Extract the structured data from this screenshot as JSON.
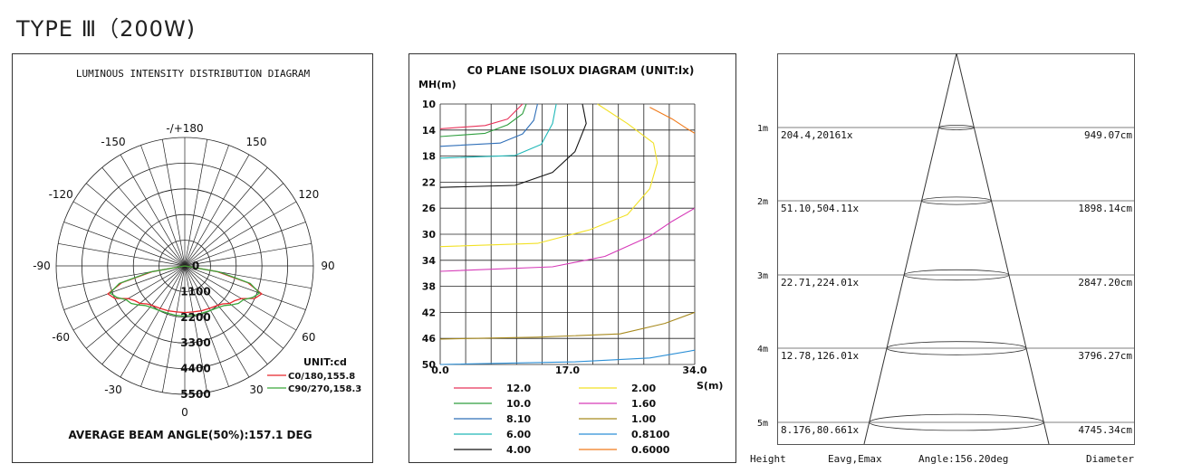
{
  "page": {
    "title": "TYPE Ⅲ（200W)"
  },
  "polar": {
    "title": "LUMINOUS INTENSITY DISTRIBUTION DIAGRAM",
    "angle_labels": [
      "-/+180",
      "150",
      "120",
      "90",
      "60",
      "30",
      "0",
      "-30",
      "-60",
      "-90",
      "-120",
      "-150"
    ],
    "radial_labels": [
      "0",
      "1100",
      "2200",
      "3300",
      "4400",
      "5500"
    ],
    "unit": "UNIT:cd",
    "legend": [
      {
        "label": "C0/180,155.8",
        "color": "#e8262b"
      },
      {
        "label": "C90/270,158.3",
        "color": "#3aa63a"
      }
    ],
    "beam_angle": "AVERAGE BEAM ANGLE(50%):157.1 DEG"
  },
  "isolux": {
    "title": "C0 PLANE ISOLUX DIAGRAM (UNIT:lx)",
    "y_label": "MH(m)",
    "x_label": "S(m)",
    "y_ticks": [
      "10",
      "14",
      "18",
      "22",
      "26",
      "30",
      "34",
      "38",
      "42",
      "46",
      "50"
    ],
    "x_ticks": [
      "0.0",
      "17.0",
      "34.0"
    ],
    "legend": [
      {
        "label": "12.0",
        "color": "#e8335a"
      },
      {
        "label": "10.0",
        "color": "#2e9e3e"
      },
      {
        "label": "8.10",
        "color": "#2f6fb8"
      },
      {
        "label": "6.00",
        "color": "#20b8b8"
      },
      {
        "label": "4.00",
        "color": "#111111"
      },
      {
        "label": "2.00",
        "color": "#f2e125"
      },
      {
        "label": "1.60",
        "color": "#d63ab8"
      },
      {
        "label": "1.00",
        "color": "#a88a1e"
      },
      {
        "label": "0.8100",
        "color": "#2c8fd6"
      },
      {
        "label": "0.6000",
        "color": "#f07a1a"
      }
    ]
  },
  "cone": {
    "rows": [
      {
        "height": "1m",
        "values": "204.4,20161x",
        "diameter": "949.07cm"
      },
      {
        "height": "2m",
        "values": "51.10,504.11x",
        "diameter": "1898.14cm"
      },
      {
        "height": "3m",
        "values": "22.71,224.01x",
        "diameter": "2847.20cm"
      },
      {
        "height": "4m",
        "values": "12.78,126.01x",
        "diameter": "3796.27cm"
      },
      {
        "height": "5m",
        "values": "8.176,80.661x",
        "diameter": "4745.34cm"
      }
    ],
    "footer": {
      "height": "Height",
      "eavg": "Eavg,Emax",
      "angle": "Angle:156.20deg",
      "diameter": "Diameter"
    }
  },
  "chart_data": [
    {
      "type": "polar",
      "title": "LUMINOUS INTENSITY DISTRIBUTION DIAGRAM",
      "unit": "cd",
      "rlim": [
        0,
        5500
      ],
      "series": [
        {
          "name": "C0/180,155.8",
          "color": "#e8262b",
          "angles_deg": [
            -90,
            -80,
            -75,
            -70,
            -65,
            -60,
            -55,
            -50,
            -45,
            -40,
            -30,
            -20,
            -10,
            0,
            10,
            20,
            30,
            40,
            45,
            50,
            55,
            60,
            65,
            70,
            75,
            80,
            90
          ],
          "values": [
            0,
            1400,
            2800,
            3500,
            3300,
            2800,
            2600,
            2500,
            2300,
            2200,
            2100,
            2050,
            2000,
            2000,
            2000,
            2050,
            2100,
            2200,
            2300,
            2500,
            2600,
            2800,
            3300,
            3500,
            2800,
            1400,
            0
          ]
        },
        {
          "name": "C90/270,158.3",
          "color": "#3aa63a",
          "angles_deg": [
            -90,
            -80,
            -75,
            -70,
            -65,
            -60,
            -55,
            -50,
            -45,
            -40,
            -30,
            -20,
            -10,
            0,
            10,
            20,
            30,
            40,
            45,
            50,
            55,
            60,
            65,
            70,
            75,
            80,
            90
          ],
          "values": [
            0,
            1500,
            2900,
            3400,
            3200,
            2900,
            2800,
            2600,
            2400,
            2300,
            2200,
            2150,
            2150,
            2150,
            2150,
            2150,
            2200,
            2300,
            2400,
            2600,
            2800,
            2900,
            3200,
            3400,
            2900,
            1500,
            0
          ]
        }
      ],
      "beam_angle_deg": 157.1
    },
    {
      "type": "line",
      "title": "C0 PLANE ISOLUX DIAGRAM (UNIT:lx)",
      "xlabel": "S(m)",
      "ylabel": "MH(m)",
      "xlim": [
        0,
        34
      ],
      "ylim": [
        10,
        50
      ],
      "y_inverted": true,
      "series": [
        {
          "name": "12.0",
          "color": "#e8335a",
          "points": [
            [
              0,
              13.8
            ],
            [
              6,
              13.3
            ],
            [
              9,
              12.3
            ],
            [
              11,
              10
            ]
          ]
        },
        {
          "name": "10.0",
          "color": "#2e9e3e",
          "points": [
            [
              0,
              15
            ],
            [
              6,
              14.5
            ],
            [
              9,
              13.2
            ],
            [
              11,
              11.5
            ],
            [
              11.5,
              10
            ]
          ]
        },
        {
          "name": "8.10",
          "color": "#2f6fb8",
          "points": [
            [
              0,
              16.5
            ],
            [
              8,
              16
            ],
            [
              11,
              14.6
            ],
            [
              12.5,
              12.5
            ],
            [
              13,
              10
            ]
          ]
        },
        {
          "name": "6.00",
          "color": "#20b8b8",
          "points": [
            [
              0,
              18.3
            ],
            [
              10,
              17.9
            ],
            [
              13.5,
              16.2
            ],
            [
              15,
              13
            ],
            [
              15.5,
              10
            ]
          ]
        },
        {
          "name": "4.00",
          "color": "#111111",
          "points": [
            [
              0,
              22.8
            ],
            [
              10,
              22.5
            ],
            [
              15,
              20.5
            ],
            [
              18,
              17.3
            ],
            [
              19.5,
              13
            ],
            [
              19,
              10
            ]
          ]
        },
        {
          "name": "2.00",
          "color": "#f2e125",
          "points": [
            [
              0,
              31.9
            ],
            [
              13,
              31.4
            ],
            [
              20,
              29.3
            ],
            [
              25,
              27
            ],
            [
              28,
              23
            ],
            [
              29,
              19
            ],
            [
              28.5,
              16
            ],
            [
              25,
              13
            ],
            [
              21,
              10
            ]
          ]
        },
        {
          "name": "1.60",
          "color": "#d63ab8",
          "points": [
            [
              0,
              35.7
            ],
            [
              15,
              35
            ],
            [
              22,
              33.4
            ],
            [
              28,
              30.3
            ],
            [
              31,
              28
            ],
            [
              34,
              26
            ]
          ]
        },
        {
          "name": "1.00",
          "color": "#a88a1e",
          "points": [
            [
              0,
              46.1
            ],
            [
              13,
              45.8
            ],
            [
              24,
              45.3
            ],
            [
              30,
              43.7
            ],
            [
              34,
              42
            ]
          ]
        },
        {
          "name": "0.8100",
          "color": "#2c8fd6",
          "points": [
            [
              0,
              50
            ],
            [
              18,
              49.6
            ],
            [
              28,
              49
            ],
            [
              34,
              47.8
            ]
          ]
        },
        {
          "name": "0.6000",
          "color": "#f07a1a",
          "points": [
            [
              28,
              10.5
            ],
            [
              31,
              12.3
            ],
            [
              33,
              13.8
            ],
            [
              34,
              14.5
            ]
          ]
        }
      ]
    },
    {
      "type": "table",
      "title": "",
      "columns": [
        "Height",
        "Eavg,Emax",
        "Diameter"
      ],
      "rows": [
        [
          "1m",
          "204.4,20161x",
          "949.07cm"
        ],
        [
          "2m",
          "51.10,504.11x",
          "1898.14cm"
        ],
        [
          "3m",
          "22.71,224.01x",
          "2847.20cm"
        ],
        [
          "4m",
          "12.78,126.01x",
          "3796.27cm"
        ],
        [
          "5m",
          "8.176,80.661x",
          "4745.34cm"
        ]
      ],
      "beam_angle": "156.20deg"
    }
  ]
}
